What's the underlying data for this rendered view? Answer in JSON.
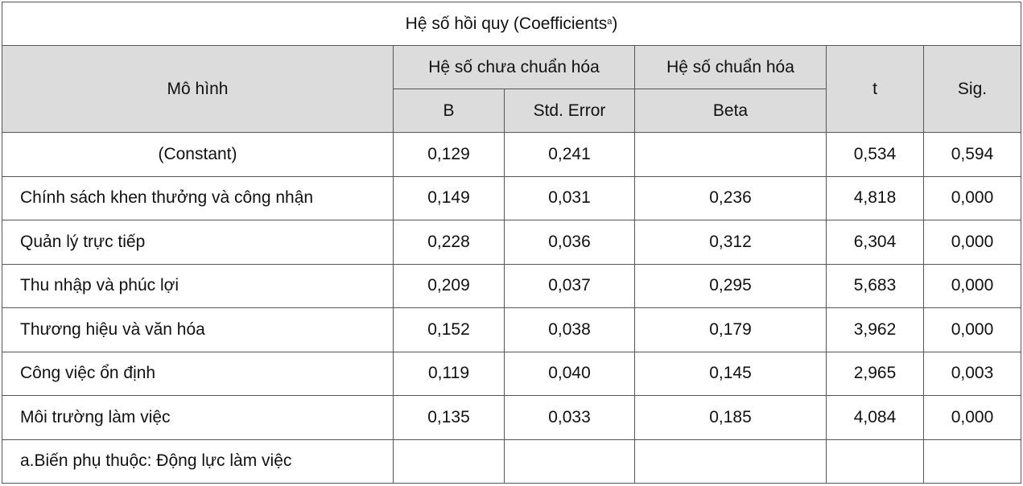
{
  "table": {
    "title": {
      "text": "Hệ số hồi quy (Coefficients",
      "superscript": "a",
      "suffix": ")"
    },
    "header": {
      "model": "Mô hình",
      "unstandardized": "Hệ số chưa chuẩn hóa",
      "standardized": "Hệ số chuẩn hóa",
      "t": "t",
      "sig": "Sig.",
      "b": "B",
      "std_error": "Std. Error",
      "beta": "Beta"
    },
    "rows": [
      [
        "(Constant)",
        "0,129",
        "0,241",
        null,
        "0,534",
        "0,594"
      ],
      [
        "Chính sách khen thưởng và công nhận",
        "0,149",
        "0,031",
        "0,236",
        "4,818",
        "0,000"
      ],
      [
        "Quản lý trực tiếp",
        "0,228",
        "0,036",
        "0,312",
        "6,304",
        "0,000"
      ],
      [
        "Thu nhập và phúc lợi",
        "0,209",
        "0,037",
        "0,295",
        "5,683",
        "0,000"
      ],
      [
        "Thương hiệu và văn hóa",
        "0,152",
        "0,038",
        "0,179",
        "3,962",
        "0,000"
      ],
      [
        "Công việc ổn định",
        "0,119",
        "0,040",
        "0,145",
        "2,965",
        "0,003"
      ],
      [
        "Môi trường làm việc",
        "0,135",
        "0,033",
        "0,185",
        "4,084",
        "0,000"
      ]
    ],
    "footnote": "a.Biến phụ thuộc: Động lực làm việc"
  }
}
